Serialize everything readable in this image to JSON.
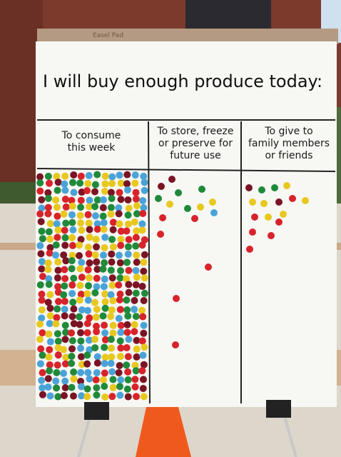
{
  "pad_label": "Easel Pad",
  "title": "I will buy enough produce today:",
  "columns": [
    {
      "lines": [
        "To consume",
        "this week"
      ]
    },
    {
      "lines": [
        "To store, freeze",
        "or preserve for",
        "future use"
      ]
    },
    {
      "lines": [
        "To give to",
        "family members",
        "or friends"
      ]
    }
  ]
}
